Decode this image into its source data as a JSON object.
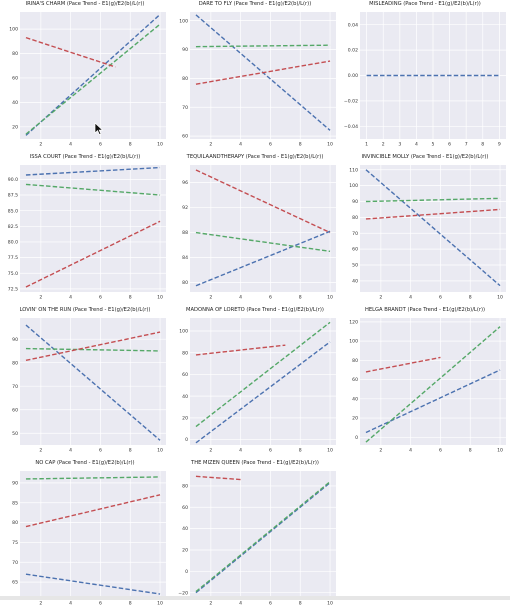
{
  "page": {
    "title": ""
  },
  "colors": {
    "blue": "#4c72b0",
    "green": "#55a868",
    "red": "#c44e52",
    "bg": "#eaeaf2",
    "grid": "#ffffff"
  },
  "chart_data": [
    {
      "type": "line",
      "title": "IRINA'S CHARM (Pace Trend - E1(g)/E2(b)/L(r))",
      "xlim": [
        0.6,
        10.4
      ],
      "ylim": [
        10,
        114
      ],
      "xticks": [
        2,
        4,
        6,
        8,
        10
      ],
      "yticks": [
        20,
        40,
        60,
        80,
        100
      ],
      "series": [
        {
          "color": "blue",
          "x": [
            1,
            10
          ],
          "y": [
            13,
            112
          ]
        },
        {
          "color": "green",
          "x": [
            1,
            10
          ],
          "y": [
            14,
            104
          ]
        },
        {
          "color": "red",
          "x": [
            1,
            7
          ],
          "y": [
            93,
            69
          ]
        }
      ]
    },
    {
      "type": "line",
      "title": "DARE TO FLY (Pace Trend - E1(g)/E2(b)/L(r))",
      "xlim": [
        0.6,
        10.4
      ],
      "ylim": [
        59,
        103
      ],
      "xticks": [
        2,
        4,
        6,
        8,
        10
      ],
      "yticks": [
        60,
        70,
        80,
        90,
        100
      ],
      "series": [
        {
          "color": "blue",
          "x": [
            1,
            10
          ],
          "y": [
            102,
            62
          ]
        },
        {
          "color": "green",
          "x": [
            1,
            10
          ],
          "y": [
            91,
            91.5
          ]
        },
        {
          "color": "red",
          "x": [
            1,
            10
          ],
          "y": [
            78,
            86
          ]
        }
      ]
    },
    {
      "type": "line",
      "title": "MISLEADING (Pace Trend - E1(g)/E2(b)/L(r))",
      "xlim": [
        0.6,
        9.4
      ],
      "ylim": [
        -0.05,
        0.05
      ],
      "xticks": [
        1,
        2,
        3,
        4,
        5,
        6,
        7,
        8,
        9
      ],
      "yticks": [
        -0.04,
        -0.02,
        0.0,
        0.02,
        0.04
      ],
      "ytick_labels": [
        "−0.04",
        "−0.02",
        "0.00",
        "0.02",
        "0.04"
      ],
      "series": [
        {
          "color": "blue",
          "x": [
            1,
            9
          ],
          "y": [
            0,
            0
          ]
        }
      ]
    },
    {
      "type": "line",
      "title": "ISSA COURT (Pace Trend - E1(g)/E2(b)/L(r))",
      "xlim": [
        0.6,
        10.4
      ],
      "ylim": [
        72,
        92.3
      ],
      "xticks": [
        2,
        4,
        6,
        8,
        10
      ],
      "yticks": [
        72.5,
        75.0,
        77.5,
        80.0,
        82.5,
        85.0,
        87.5,
        90.0
      ],
      "ytick_labels": [
        "72.5",
        "75.0",
        "77.5",
        "80.0",
        "82.5",
        "85.0",
        "87.5",
        "90.0"
      ],
      "series": [
        {
          "color": "blue",
          "x": [
            1,
            10
          ],
          "y": [
            90.7,
            91.9
          ]
        },
        {
          "color": "green",
          "x": [
            1,
            10
          ],
          "y": [
            89.2,
            87.5
          ]
        },
        {
          "color": "red",
          "x": [
            1,
            10
          ],
          "y": [
            72.8,
            83.3
          ]
        }
      ]
    },
    {
      "type": "line",
      "title": "TEQUILAANDTHERAPY (Pace Trend - E1(g)/E2(b)/L(r))",
      "xlim": [
        0.6,
        10.4
      ],
      "ylim": [
        78.5,
        98.8
      ],
      "xticks": [
        2,
        4,
        6,
        8,
        10
      ],
      "yticks": [
        80,
        84,
        88,
        92,
        96
      ],
      "ytick_labels": [
        "80",
        "84",
        "88",
        "92",
        "96"
      ],
      "series": [
        {
          "color": "blue",
          "x": [
            1,
            10
          ],
          "y": [
            79.5,
            88.2
          ]
        },
        {
          "color": "green",
          "x": [
            1,
            10
          ],
          "y": [
            88.0,
            85.0
          ]
        },
        {
          "color": "red",
          "x": [
            1,
            10
          ],
          "y": [
            98.0,
            88.0
          ]
        }
      ]
    },
    {
      "type": "line",
      "title": "INVINCIBLE MOLLY (Pace Trend - E1(g)/E2(b)/L(r))",
      "xlim": [
        0.6,
        10.4
      ],
      "ylim": [
        33,
        113
      ],
      "xticks": [
        2,
        4,
        6,
        8,
        10
      ],
      "yticks": [
        40,
        50,
        60,
        70,
        80,
        90,
        100,
        110
      ],
      "series": [
        {
          "color": "blue",
          "x": [
            1,
            10
          ],
          "y": [
            110,
            37
          ]
        },
        {
          "color": "green",
          "x": [
            1,
            10
          ],
          "y": [
            90,
            92
          ]
        },
        {
          "color": "red",
          "x": [
            1,
            10
          ],
          "y": [
            79,
            85
          ]
        }
      ]
    },
    {
      "type": "line",
      "title": "LOVIN' ON THE RUN (Pace Trend - E1(g)/E2(b)/L(r))",
      "xlim": [
        0.6,
        10.4
      ],
      "ylim": [
        45,
        99
      ],
      "xticks": [
        2,
        4,
        6,
        8,
        10
      ],
      "yticks": [
        50,
        60,
        70,
        80,
        90
      ],
      "series": [
        {
          "color": "blue",
          "x": [
            1,
            10
          ],
          "y": [
            96,
            47
          ]
        },
        {
          "color": "green",
          "x": [
            1,
            10
          ],
          "y": [
            86,
            85
          ]
        },
        {
          "color": "red",
          "x": [
            1,
            10
          ],
          "y": [
            81,
            93
          ]
        }
      ]
    },
    {
      "type": "line",
      "title": "MADONNA OF LORETO (Pace Trend - E1(g)/E2(b)/L(r))",
      "xlim": [
        0.6,
        10.4
      ],
      "ylim": [
        -5,
        112
      ],
      "xticks": [
        2,
        4,
        6,
        8,
        10
      ],
      "yticks": [
        0,
        20,
        40,
        60,
        80,
        100
      ],
      "series": [
        {
          "color": "blue",
          "x": [
            1,
            10
          ],
          "y": [
            -3,
            90
          ]
        },
        {
          "color": "green",
          "x": [
            1,
            10
          ],
          "y": [
            12,
            108
          ]
        },
        {
          "color": "red",
          "x": [
            1,
            7
          ],
          "y": [
            78,
            87
          ]
        }
      ]
    },
    {
      "type": "line",
      "title": "HELGA BRANDT (Pace Trend - E1(g)/E2(b)/L(r))",
      "xlim": [
        0.6,
        10.4
      ],
      "ylim": [
        -8,
        124
      ],
      "xticks": [
        2,
        4,
        6,
        8,
        10
      ],
      "yticks": [
        0,
        20,
        40,
        60,
        80,
        100,
        120
      ],
      "series": [
        {
          "color": "blue",
          "x": [
            1,
            10
          ],
          "y": [
            5,
            70
          ]
        },
        {
          "color": "green",
          "x": [
            1,
            10
          ],
          "y": [
            -5,
            115
          ]
        },
        {
          "color": "red",
          "x": [
            1,
            6
          ],
          "y": [
            68,
            83
          ]
        }
      ]
    },
    {
      "type": "line",
      "title": "NO CAP (Pace Trend - E1(g)/E2(b)/L(r))",
      "xlim": [
        0.6,
        10.4
      ],
      "ylim": [
        61,
        93
      ],
      "xticks": [
        2,
        4,
        6,
        8,
        10
      ],
      "yticks": [
        65,
        70,
        75,
        80,
        85,
        90
      ],
      "series": [
        {
          "color": "blue",
          "x": [
            1,
            10
          ],
          "y": [
            67,
            62
          ]
        },
        {
          "color": "green",
          "x": [
            1,
            10
          ],
          "y": [
            91,
            91.5
          ]
        },
        {
          "color": "red",
          "x": [
            1,
            10
          ],
          "y": [
            79,
            87
          ]
        }
      ]
    },
    {
      "type": "line",
      "title": "THE MIZEN QUEEN (Pace Trend - E1(g)/E2(b)/L(r))",
      "xlim": [
        0.6,
        10.4
      ],
      "ylim": [
        -25,
        94
      ],
      "xticks": [
        2,
        4,
        6,
        8,
        10
      ],
      "yticks": [
        -20,
        0,
        20,
        40,
        60,
        80
      ],
      "ytick_labels": [
        "−20",
        "0",
        "20",
        "40",
        "60",
        "80"
      ],
      "series": [
        {
          "color": "blue",
          "x": [
            1,
            10
          ],
          "y": [
            -20,
            83
          ]
        },
        {
          "color": "green",
          "x": [
            1,
            10
          ],
          "y": [
            -19,
            84
          ]
        },
        {
          "color": "red",
          "x": [
            1,
            4
          ],
          "y": [
            89,
            86
          ]
        }
      ]
    }
  ]
}
